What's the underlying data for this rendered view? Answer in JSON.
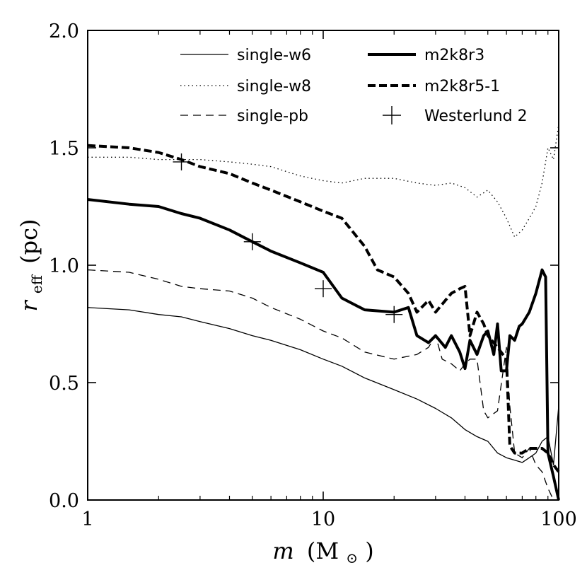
{
  "chart_data": {
    "type": "line",
    "xscale": "log",
    "xlim": [
      1,
      100
    ],
    "ylim": [
      0.0,
      2.0
    ],
    "x_ticks": [
      {
        "value": 1,
        "label": "1"
      },
      {
        "value": 10,
        "label": "10"
      },
      {
        "value": 100,
        "label": "100"
      }
    ],
    "y_ticks": [
      {
        "value": 0.0,
        "label": "0.0"
      },
      {
        "value": 0.5,
        "label": "0.5"
      },
      {
        "value": 1.0,
        "label": "1.0"
      },
      {
        "value": 1.5,
        "label": "1.5"
      },
      {
        "value": 2.0,
        "label": "2.0"
      }
    ],
    "xlabel_main": "m",
    "xlabel_unit": "(M",
    "xlabel_unit_close": ")",
    "ylabel_main": "r",
    "ylabel_sub": "eff",
    "ylabel_unit": "(pc)",
    "legend_position": "top",
    "series": [
      {
        "name": "single-w6",
        "style": "solid-thin",
        "color": "#000000",
        "x": [
          1,
          1.5,
          2,
          2.5,
          3,
          4,
          5,
          6,
          8,
          10,
          12,
          15,
          20,
          25,
          30,
          35,
          40,
          45,
          50,
          55,
          60,
          65,
          70,
          75,
          80,
          85,
          90,
          95,
          100
        ],
        "y": [
          0.82,
          0.81,
          0.79,
          0.78,
          0.76,
          0.73,
          0.7,
          0.68,
          0.64,
          0.6,
          0.57,
          0.52,
          0.47,
          0.43,
          0.39,
          0.35,
          0.3,
          0.27,
          0.25,
          0.2,
          0.18,
          0.17,
          0.16,
          0.18,
          0.2,
          0.25,
          0.27,
          0.15,
          0.4
        ]
      },
      {
        "name": "single-w8",
        "style": "dotted",
        "color": "#000000",
        "x": [
          1,
          1.5,
          2,
          2.5,
          3,
          4,
          5,
          6,
          8,
          10,
          12,
          15,
          20,
          25,
          30,
          35,
          40,
          45,
          50,
          55,
          60,
          65,
          70,
          75,
          80,
          85,
          90,
          95,
          100
        ],
        "y": [
          1.46,
          1.46,
          1.45,
          1.45,
          1.45,
          1.44,
          1.43,
          1.42,
          1.38,
          1.36,
          1.35,
          1.37,
          1.37,
          1.35,
          1.34,
          1.35,
          1.33,
          1.29,
          1.32,
          1.27,
          1.2,
          1.12,
          1.15,
          1.2,
          1.25,
          1.35,
          1.5,
          1.45,
          1.6
        ]
      },
      {
        "name": "single-pb",
        "style": "dashed-thin",
        "color": "#000000",
        "x": [
          1,
          1.5,
          2,
          2.5,
          3,
          4,
          5,
          6,
          8,
          10,
          12,
          15,
          20,
          25,
          28,
          30,
          32,
          35,
          38,
          40,
          42,
          45,
          48,
          50,
          55,
          60,
          62,
          65,
          70,
          75,
          80,
          85,
          90,
          95,
          100
        ],
        "y": [
          0.98,
          0.97,
          0.94,
          0.91,
          0.9,
          0.89,
          0.86,
          0.82,
          0.77,
          0.72,
          0.69,
          0.63,
          0.6,
          0.62,
          0.65,
          0.7,
          0.6,
          0.58,
          0.55,
          0.58,
          0.6,
          0.6,
          0.38,
          0.35,
          0.38,
          0.65,
          0.4,
          0.2,
          0.18,
          0.22,
          0.15,
          0.12,
          0.05,
          0.0,
          0.0
        ]
      },
      {
        "name": "m2k8r3",
        "style": "solid-thick",
        "color": "#000000",
        "x": [
          1,
          1.5,
          2,
          2.5,
          3,
          4,
          5,
          6,
          8,
          10,
          12,
          15,
          20,
          23,
          25,
          28,
          30,
          33,
          35,
          38,
          40,
          42,
          45,
          48,
          50,
          53,
          55,
          57,
          60,
          62,
          65,
          68,
          70,
          75,
          80,
          85,
          88,
          90,
          95,
          100
        ],
        "y": [
          1.28,
          1.26,
          1.25,
          1.22,
          1.2,
          1.15,
          1.1,
          1.06,
          1.01,
          0.97,
          0.86,
          0.81,
          0.8,
          0.82,
          0.7,
          0.67,
          0.7,
          0.65,
          0.7,
          0.63,
          0.56,
          0.68,
          0.62,
          0.7,
          0.72,
          0.62,
          0.75,
          0.55,
          0.55,
          0.7,
          0.68,
          0.74,
          0.75,
          0.8,
          0.88,
          0.98,
          0.95,
          0.2,
          0.1,
          0.0
        ]
      },
      {
        "name": "m2k8r5-1",
        "style": "dashed-thick",
        "color": "#000000",
        "x": [
          1,
          1.5,
          2,
          2.5,
          3,
          4,
          5,
          6,
          8,
          10,
          12,
          15,
          17,
          20,
          23,
          25,
          28,
          30,
          33,
          35,
          38,
          40,
          42,
          45,
          48,
          50,
          55,
          60,
          62,
          65,
          70,
          75,
          80,
          85,
          90,
          95,
          100
        ],
        "y": [
          1.51,
          1.5,
          1.48,
          1.45,
          1.42,
          1.39,
          1.35,
          1.32,
          1.27,
          1.23,
          1.2,
          1.08,
          0.98,
          0.95,
          0.88,
          0.8,
          0.85,
          0.8,
          0.85,
          0.88,
          0.9,
          0.91,
          0.7,
          0.8,
          0.75,
          0.7,
          0.65,
          0.6,
          0.23,
          0.2,
          0.2,
          0.22,
          0.22,
          0.22,
          0.2,
          0.15,
          0.12
        ]
      }
    ],
    "markers": {
      "name": "Westerlund 2",
      "symbol": "+",
      "x": [
        2.5,
        5,
        10,
        20
      ],
      "y": [
        1.44,
        1.1,
        0.9,
        0.79
      ]
    }
  }
}
